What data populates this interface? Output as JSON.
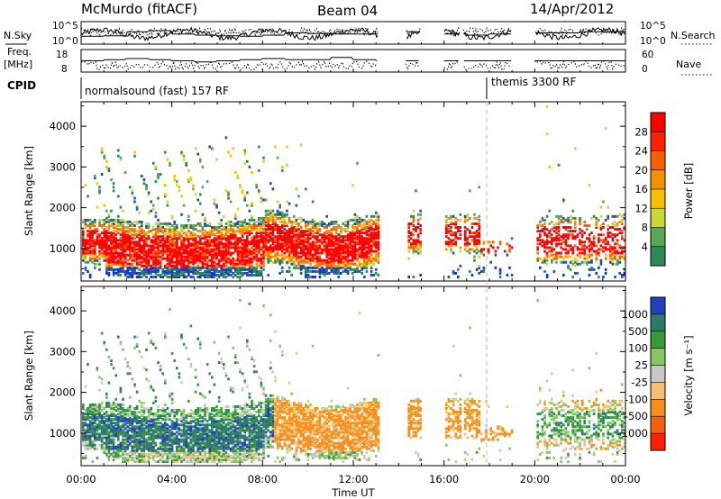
{
  "header": {
    "station": "McMurdo (fitACF)",
    "beam": "Beam 04",
    "date": "14/Apr/2012"
  },
  "sidebar": {
    "nsky": "N.Sky",
    "freq_line1": "Freq.",
    "freq_line2": "[MHz]",
    "cpid": "CPID",
    "nsearch": "N.Search",
    "nave": "Nave"
  },
  "small_panels": {
    "noise_left_ticks": [
      "10^5",
      "10^0"
    ],
    "noise_right_ticks": [
      "10^5",
      "10^0"
    ],
    "freq_left_ticks": [
      "18",
      "8"
    ],
    "nave_right_ticks": [
      "60",
      "0"
    ]
  },
  "cpid_labels": [
    "normalsound (fast) 157 RF",
    "themis 3300 RF"
  ],
  "colors": {
    "power": [
      "#1a2ad8",
      "#1f4f9e",
      "#2e8a55",
      "#5aa55a",
      "#c8d838",
      "#f5c000",
      "#f59000",
      "#f56000",
      "#ff2200",
      "#ff0000"
    ],
    "velocity": [
      "#2040c0",
      "#2e7a6a",
      "#3a9a3a",
      "#86c860",
      "#c8c8c8",
      "#f5c070",
      "#f59020",
      "#f56010",
      "#ff2000"
    ]
  },
  "chart_data": [
    {
      "type": "heatmap",
      "panel": "power",
      "xlabel": "",
      "ylabel": "Slant Range [km]",
      "x_ticks": [
        "00:00",
        "04:00",
        "08:00",
        "12:00",
        "16:00",
        "20:00",
        "00:00"
      ],
      "y_ticks": [
        "1000",
        "2000",
        "3000",
        "4000"
      ],
      "colorbar_label": "Power [dB]",
      "colorbar_ticks": [
        "4",
        "8",
        "12",
        "16",
        "20",
        "24",
        "28"
      ]
    },
    {
      "type": "heatmap",
      "panel": "velocity",
      "xlabel": "Time UT",
      "ylabel": "Slant Range [km]",
      "x_ticks": [
        "00:00",
        "04:00",
        "08:00",
        "12:00",
        "16:00",
        "20:00",
        "00:00"
      ],
      "y_ticks": [
        "1000",
        "2000",
        "3000",
        "4000"
      ],
      "colorbar_label": "Velocity [m s⁻¹]",
      "colorbar_ticks": [
        "1000",
        "500",
        "100",
        "25",
        "-25",
        "-100",
        "-500",
        "-1000"
      ]
    }
  ]
}
